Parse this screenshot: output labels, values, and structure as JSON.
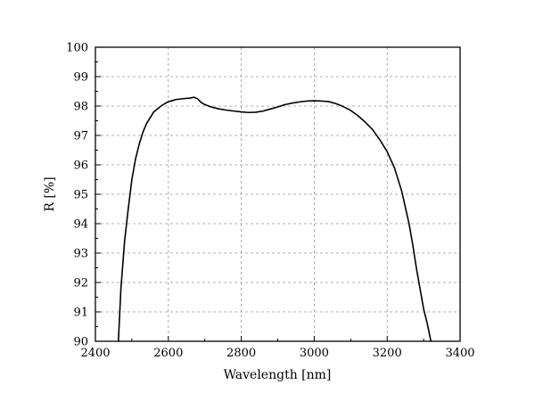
{
  "chart_data": {
    "type": "line",
    "title": "",
    "xlabel": "Wavelength [nm]",
    "ylabel": "R [%]",
    "xlim": [
      2400,
      3400
    ],
    "ylim": [
      90,
      100
    ],
    "x_ticks": [
      2400,
      2600,
      2800,
      3000,
      3200,
      3400
    ],
    "y_ticks": [
      90,
      91,
      92,
      93,
      94,
      95,
      96,
      97,
      98,
      99,
      100
    ],
    "grid": true,
    "grid_style": "dashed",
    "legend": "none",
    "line_color": "#000000",
    "series": [
      {
        "x": [
          2463,
          2470,
          2480,
          2490,
          2500,
          2510,
          2520,
          2530,
          2540,
          2550,
          2560,
          2570,
          2580,
          2590,
          2600,
          2610,
          2620,
          2640,
          2660,
          2670,
          2680,
          2690,
          2700,
          2720,
          2740,
          2760,
          2780,
          2800,
          2820,
          2840,
          2860,
          2880,
          2900,
          2920,
          2940,
          2960,
          2980,
          3000,
          3020,
          3040,
          3060,
          3080,
          3100,
          3120,
          3140,
          3160,
          3180,
          3200,
          3220,
          3240,
          3260,
          3270,
          3280,
          3290,
          3300,
          3310,
          3320
        ],
        "y": [
          90.0,
          91.8,
          93.4,
          94.5,
          95.5,
          96.2,
          96.7,
          97.1,
          97.4,
          97.6,
          97.8,
          97.9,
          98.0,
          98.08,
          98.15,
          98.18,
          98.22,
          98.25,
          98.27,
          98.3,
          98.25,
          98.12,
          98.05,
          97.96,
          97.9,
          97.86,
          97.83,
          97.8,
          97.78,
          97.79,
          97.83,
          97.9,
          97.97,
          98.05,
          98.1,
          98.14,
          98.17,
          98.18,
          98.17,
          98.15,
          98.08,
          97.98,
          97.85,
          97.67,
          97.45,
          97.2,
          96.85,
          96.45,
          95.9,
          95.1,
          94.0,
          93.3,
          92.5,
          91.8,
          91.1,
          90.6,
          90.0
        ]
      }
    ]
  }
}
